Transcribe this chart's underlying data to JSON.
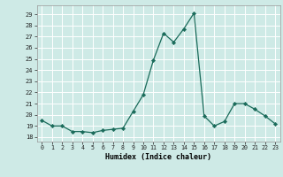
{
  "x": [
    0,
    1,
    2,
    3,
    4,
    5,
    6,
    7,
    8,
    9,
    10,
    11,
    12,
    13,
    14,
    15,
    16,
    17,
    18,
    19,
    20,
    21,
    22,
    23
  ],
  "y": [
    19.5,
    19.0,
    19.0,
    18.5,
    18.5,
    18.4,
    18.6,
    18.7,
    18.8,
    20.3,
    21.8,
    24.9,
    27.3,
    26.5,
    27.7,
    29.1,
    19.9,
    19.0,
    19.4,
    21.0,
    21.0,
    20.5,
    19.9,
    19.2
  ],
  "line_color": "#1a6b5a",
  "marker_color": "#1a6b5a",
  "bg_color": "#ceeae6",
  "grid_color": "#ffffff",
  "xlabel": "Humidex (Indice chaleur)",
  "ylabel_ticks": [
    18,
    19,
    20,
    21,
    22,
    23,
    24,
    25,
    26,
    27,
    28,
    29
  ],
  "ylim": [
    17.6,
    29.8
  ],
  "xlim": [
    -0.5,
    23.5
  ]
}
